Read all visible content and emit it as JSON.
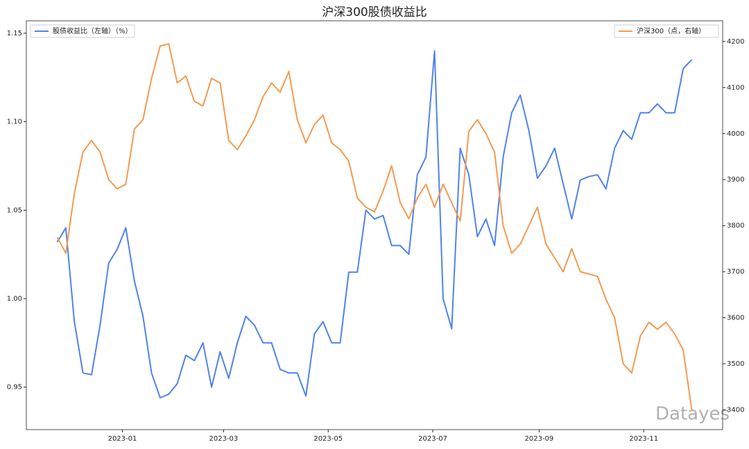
{
  "chart_data": {
    "type": "line",
    "title": "沪深300股债收益比",
    "watermark": "Datayes",
    "xlim": [
      -3.6,
      77.6
    ],
    "xticks": [
      {
        "value": 7.6,
        "label": "2023-01"
      },
      {
        "value": 19.4,
        "label": "2023-03"
      },
      {
        "value": 31.6,
        "label": "2023-05"
      },
      {
        "value": 43.8,
        "label": "2023-07"
      },
      {
        "value": 56.2,
        "label": "2023-09"
      },
      {
        "value": 68.4,
        "label": "2023-11"
      }
    ],
    "ylim": [
      0.926,
      1.157
    ],
    "yticks": [
      0.95,
      {
        "value": 1,
        "label": "1.00"
      },
      1.05,
      {
        "value": 1.1,
        "label": "1.10"
      },
      1.15
    ],
    "y2lim": [
      3357,
      4245
    ],
    "y2ticks": [
      3400,
      3500,
      3600,
      3700,
      3800,
      3900,
      4000,
      4100,
      4200
    ],
    "grid": false,
    "series": [
      {
        "name": "股债收益比（左轴）（%）",
        "color": "#4f82ee",
        "legend": "upper left",
        "values": [
          1.032,
          1.04,
          0.987,
          0.958,
          0.957,
          0.985,
          1.02,
          1.028,
          1.04,
          1.01,
          0.99,
          0.958,
          0.944,
          0.946,
          0.952,
          0.968,
          0.965,
          0.975,
          0.95,
          0.97,
          0.955,
          0.975,
          0.99,
          0.985,
          0.975,
          0.975,
          0.96,
          0.958,
          0.958,
          0.945,
          0.98,
          0.987,
          0.975,
          0.975,
          1.015,
          1.015,
          1.05,
          1.045,
          1.047,
          1.03,
          1.03,
          1.025,
          1.07,
          1.08,
          1.14,
          1.0,
          0.983,
          1.085,
          1.07,
          1.035,
          1.045,
          1.03,
          1.08,
          1.105,
          1.115,
          1.095,
          1.068,
          1.075,
          1.085,
          1.065,
          1.045,
          1.067,
          1.069,
          1.07,
          1.062,
          1.085,
          1.095,
          1.09,
          1.105,
          1.105,
          1.11,
          1.105,
          1.105,
          1.13,
          1.135
        ]
      },
      {
        "name": "沪深300（点，右轴）",
        "color": "#f59a4f",
        "axis": "y2",
        "legend": "upper right",
        "values": [
          3775,
          3740,
          3870,
          3960,
          3985,
          3960,
          3900,
          3880,
          3890,
          4010,
          4030,
          4120,
          4190,
          4195,
          4110,
          4125,
          4070,
          4060,
          4120,
          4110,
          3985,
          3965,
          3995,
          4030,
          4080,
          4110,
          4090,
          4135,
          4030,
          3980,
          4020,
          4040,
          3980,
          3965,
          3940,
          3860,
          3840,
          3830,
          3875,
          3930,
          3850,
          3815,
          3860,
          3890,
          3840,
          3890,
          3850,
          3810,
          4005,
          4030,
          4000,
          3960,
          3800,
          3740,
          3760,
          3800,
          3840,
          3760,
          3730,
          3700,
          3750,
          3700,
          3695,
          3690,
          3640,
          3600,
          3500,
          3480,
          3560,
          3590,
          3575,
          3590,
          3565,
          3530,
          3400
        ]
      }
    ]
  }
}
